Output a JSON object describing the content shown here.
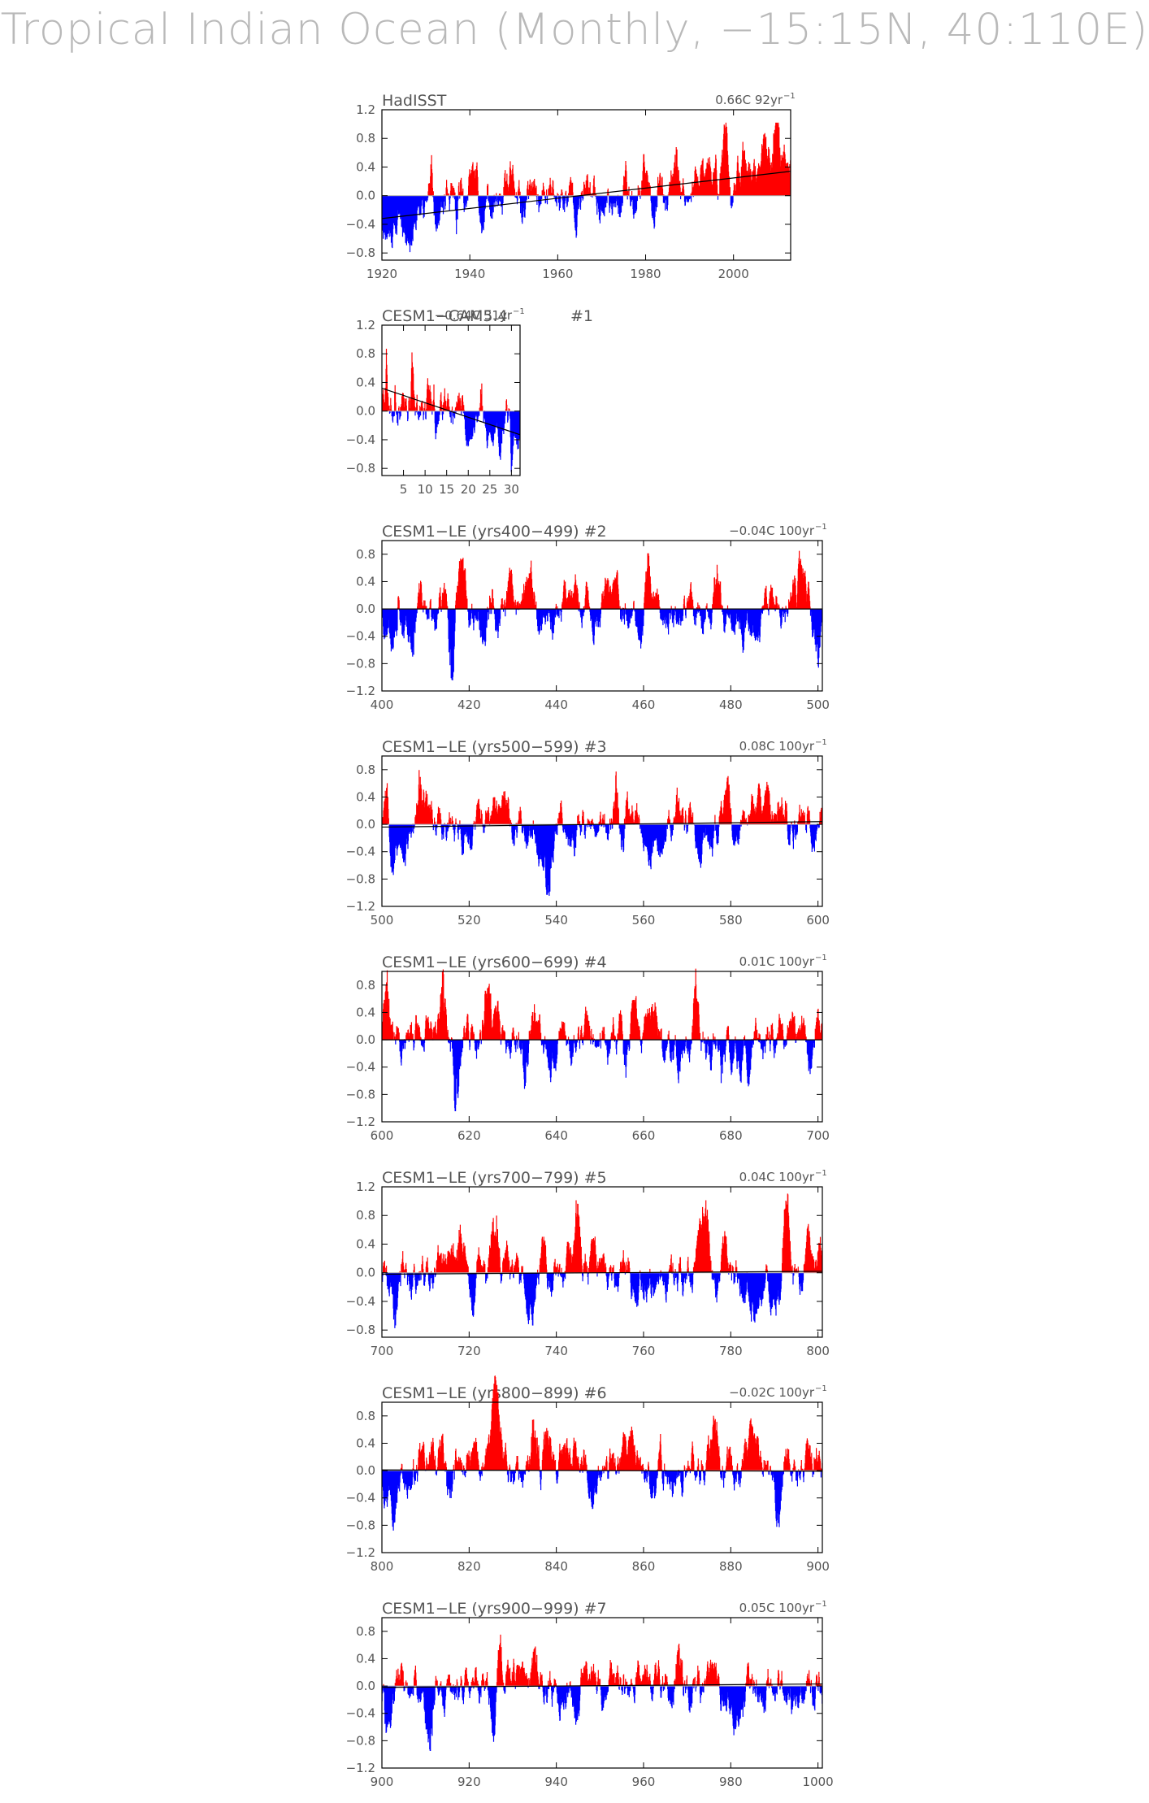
{
  "page": {
    "title": "Tropical Indian Ocean (Monthly, −15:15N, 40:110E)"
  },
  "colors": {
    "positive": "#ff0000",
    "negative": "#0000ff",
    "trend": "#000000",
    "axis": "#000000",
    "labels": "#555555",
    "zero_line": "#aaaaaa"
  },
  "chart_data": [
    {
      "type": "bar",
      "title": "HadISST",
      "trend_label": "0.66C 92yr",
      "trend_unit_exp": "−1",
      "x_range": [
        1920,
        2013
      ],
      "ylim": [
        -0.9,
        1.2
      ],
      "x_ticks": [
        1920,
        1940,
        1960,
        1980,
        2000
      ],
      "y_ticks": [
        1.2,
        0.8,
        0.4,
        0.0,
        -0.4,
        -0.8
      ],
      "trend_line": [
        [
          1920,
          -0.32
        ],
        [
          2013,
          0.34
        ]
      ],
      "bar_profile": {
        "peak_pos": 0.34,
        "peak_neg": -0.72,
        "samples": 1116,
        "seed": 11
      },
      "events": [
        {
          "x": 1931,
          "y": 0.38
        },
        {
          "x": 1941,
          "y": 0.35
        },
        {
          "x": 1944,
          "y": 0.36
        },
        {
          "x": 1937,
          "y": -0.7
        },
        {
          "x": 1952,
          "y": -0.6
        },
        {
          "x": 1983,
          "y": 0.7
        },
        {
          "x": 1987,
          "y": 0.66
        },
        {
          "x": 1998,
          "y": 0.98
        },
        {
          "x": 2010,
          "y": 0.8
        },
        {
          "x": 1974,
          "y": -0.5
        },
        {
          "x": 2009,
          "y": 0.6
        }
      ],
      "grid": false,
      "legend": "none"
    },
    {
      "type": "bar",
      "title": "CESM1−CAM5.4",
      "title_suffix": "#1",
      "trend_label": "−0.64C 31yr",
      "trend_unit_exp": "−1",
      "x_range": [
        0,
        32
      ],
      "ylim": [
        -0.9,
        1.2
      ],
      "x_ticks": [
        5,
        10,
        15,
        20,
        25,
        30
      ],
      "y_ticks": [
        1.2,
        0.8,
        0.4,
        0.0,
        -0.4,
        -0.8
      ],
      "trend_line": [
        [
          0,
          0.32
        ],
        [
          32,
          -0.33
        ]
      ],
      "bar_profile": {
        "peak_pos": 0.36,
        "peak_neg": -0.55,
        "samples": 384,
        "seed": 23
      },
      "events": [
        {
          "x": 1,
          "y": 0.98
        },
        {
          "x": 3,
          "y": 0.65
        },
        {
          "x": 7,
          "y": 0.62
        },
        {
          "x": 12,
          "y": 0.68
        },
        {
          "x": 23,
          "y": 0.58
        },
        {
          "x": 28,
          "y": 0.32
        },
        {
          "x": 30,
          "y": -0.82
        },
        {
          "x": 14,
          "y": -0.5
        }
      ],
      "grid": false,
      "legend": "none"
    },
    {
      "type": "bar",
      "title": "CESM1−LE (yrs400−499) #2",
      "trend_label": "−0.04C 100yr",
      "trend_unit_exp": "−1",
      "x_range": [
        400,
        501
      ],
      "ylim": [
        -1.2,
        1.0
      ],
      "x_ticks": [
        400,
        420,
        440,
        460,
        480,
        500
      ],
      "y_ticks": [
        0.8,
        0.4,
        0.0,
        -0.4,
        -0.8,
        -1.2
      ],
      "trend_line": [
        [
          400,
          0.0
        ],
        [
          501,
          0.0
        ]
      ],
      "bar_profile": {
        "peak_pos": 0.5,
        "peak_neg": -0.55,
        "samples": 1212,
        "seed": 37
      },
      "events": [
        {
          "x": 404,
          "y": 0.68
        },
        {
          "x": 407,
          "y": -0.95
        },
        {
          "x": 418,
          "y": 0.75
        },
        {
          "x": 416,
          "y": -0.95
        },
        {
          "x": 425,
          "y": 0.62
        },
        {
          "x": 461,
          "y": 0.75
        },
        {
          "x": 477,
          "y": 0.72
        },
        {
          "x": 496,
          "y": 0.55
        },
        {
          "x": 500,
          "y": -0.7
        },
        {
          "x": 455,
          "y": -0.55
        }
      ],
      "grid": false,
      "legend": "none"
    },
    {
      "type": "bar",
      "title": "CESM1−LE (yrs500−599) #3",
      "trend_label": "0.08C 100yr",
      "trend_unit_exp": "−1",
      "x_range": [
        500,
        601
      ],
      "ylim": [
        -1.2,
        1.0
      ],
      "x_ticks": [
        500,
        520,
        540,
        560,
        580,
        600
      ],
      "y_ticks": [
        0.8,
        0.4,
        0.0,
        -0.4,
        -0.8,
        -1.2
      ],
      "trend_line": [
        [
          500,
          -0.04
        ],
        [
          601,
          0.04
        ]
      ],
      "bar_profile": {
        "peak_pos": 0.55,
        "peak_neg": -0.55,
        "samples": 1212,
        "seed": 53
      },
      "events": [
        {
          "x": 501,
          "y": 0.88
        },
        {
          "x": 509,
          "y": 0.62
        },
        {
          "x": 538,
          "y": -0.92
        },
        {
          "x": 554,
          "y": 0.72
        },
        {
          "x": 568,
          "y": 0.62
        },
        {
          "x": 555,
          "y": -0.88
        },
        {
          "x": 585,
          "y": 0.62
        },
        {
          "x": 575,
          "y": -0.6
        }
      ],
      "grid": false,
      "legend": "none"
    },
    {
      "type": "bar",
      "title": "CESM1−LE (yrs600−699) #4",
      "trend_label": "0.01C 100yr",
      "trend_unit_exp": "−1",
      "x_range": [
        600,
        701
      ],
      "ylim": [
        -1.2,
        1.0
      ],
      "x_ticks": [
        600,
        620,
        640,
        660,
        680,
        700
      ],
      "y_ticks": [
        0.8,
        0.4,
        0.0,
        -0.4,
        -0.8,
        -1.2
      ],
      "trend_line": [
        [
          600,
          0.0
        ],
        [
          701,
          0.0
        ]
      ],
      "bar_profile": {
        "peak_pos": 0.5,
        "peak_neg": -0.55,
        "samples": 1212,
        "seed": 71
      },
      "events": [
        {
          "x": 601,
          "y": 0.78
        },
        {
          "x": 614,
          "y": 0.82
        },
        {
          "x": 617,
          "y": -1.05
        },
        {
          "x": 624,
          "y": 0.68
        },
        {
          "x": 633,
          "y": -0.85
        },
        {
          "x": 656,
          "y": -0.6
        },
        {
          "x": 672,
          "y": 0.75
        },
        {
          "x": 678,
          "y": -0.82
        },
        {
          "x": 698,
          "y": -0.6
        }
      ],
      "grid": false,
      "legend": "none"
    },
    {
      "type": "bar",
      "title": "CESM1−LE (yrs700−799) #5",
      "trend_label": "0.04C 100yr",
      "trend_unit_exp": "−1",
      "x_range": [
        700,
        801
      ],
      "ylim": [
        -0.9,
        1.2
      ],
      "x_ticks": [
        700,
        720,
        740,
        760,
        780,
        800
      ],
      "y_ticks": [
        1.2,
        0.8,
        0.4,
        0.0,
        -0.4,
        -0.8
      ],
      "trend_line": [
        [
          700,
          -0.02
        ],
        [
          801,
          0.02
        ]
      ],
      "bar_profile": {
        "peak_pos": 0.45,
        "peak_neg": -0.45,
        "samples": 1212,
        "seed": 89
      },
      "events": [
        {
          "x": 718,
          "y": 0.65
        },
        {
          "x": 726,
          "y": 0.95
        },
        {
          "x": 745,
          "y": 0.7
        },
        {
          "x": 793,
          "y": 1.1
        },
        {
          "x": 790,
          "y": -0.82
        },
        {
          "x": 703,
          "y": -0.62
        },
        {
          "x": 774,
          "y": 0.65
        }
      ],
      "grid": false,
      "legend": "none"
    },
    {
      "type": "bar",
      "title": "CESM1−LE (yrs800−899) #6",
      "trend_label": "−0.02C 100yr",
      "trend_unit_exp": "−1",
      "x_range": [
        800,
        901
      ],
      "ylim": [
        -1.2,
        1.0
      ],
      "x_ticks": [
        800,
        820,
        840,
        860,
        880,
        900
      ],
      "y_ticks": [
        0.8,
        0.4,
        0.0,
        -0.4,
        -0.8,
        -1.2
      ],
      "trend_line": [
        [
          800,
          0.01
        ],
        [
          901,
          -0.01
        ]
      ],
      "bar_profile": {
        "peak_pos": 0.48,
        "peak_neg": -0.5,
        "samples": 1212,
        "seed": 97
      },
      "events": [
        {
          "x": 835,
          "y": 0.82
        },
        {
          "x": 838,
          "y": 0.62
        },
        {
          "x": 891,
          "y": -0.9
        },
        {
          "x": 815,
          "y": -0.65
        },
        {
          "x": 826,
          "y": 0.65
        },
        {
          "x": 899,
          "y": -0.65
        },
        {
          "x": 876,
          "y": 0.6
        }
      ],
      "grid": false,
      "legend": "none"
    },
    {
      "type": "bar",
      "title": "CESM1−LE (yrs900−999) #7",
      "trend_label": "0.05C 100yr",
      "trend_unit_exp": "−1",
      "x_range": [
        900,
        1001
      ],
      "ylim": [
        -1.2,
        1.0
      ],
      "x_ticks": [
        900,
        920,
        940,
        960,
        980,
        1000
      ],
      "y_ticks": [
        0.8,
        0.4,
        0.0,
        -0.4,
        -0.8,
        -1.2
      ],
      "trend_line": [
        [
          900,
          -0.02
        ],
        [
          1001,
          0.03
        ]
      ],
      "bar_profile": {
        "peak_pos": 0.45,
        "peak_neg": -0.5,
        "samples": 1212,
        "seed": 101
      },
      "events": [
        {
          "x": 911,
          "y": -0.92
        },
        {
          "x": 968,
          "y": 0.85
        },
        {
          "x": 935,
          "y": 0.6
        },
        {
          "x": 901,
          "y": -0.65
        },
        {
          "x": 927,
          "y": 0.62
        },
        {
          "x": 926,
          "y": -0.55
        },
        {
          "x": 993,
          "y": -0.55
        }
      ],
      "grid": false,
      "legend": "none"
    }
  ]
}
